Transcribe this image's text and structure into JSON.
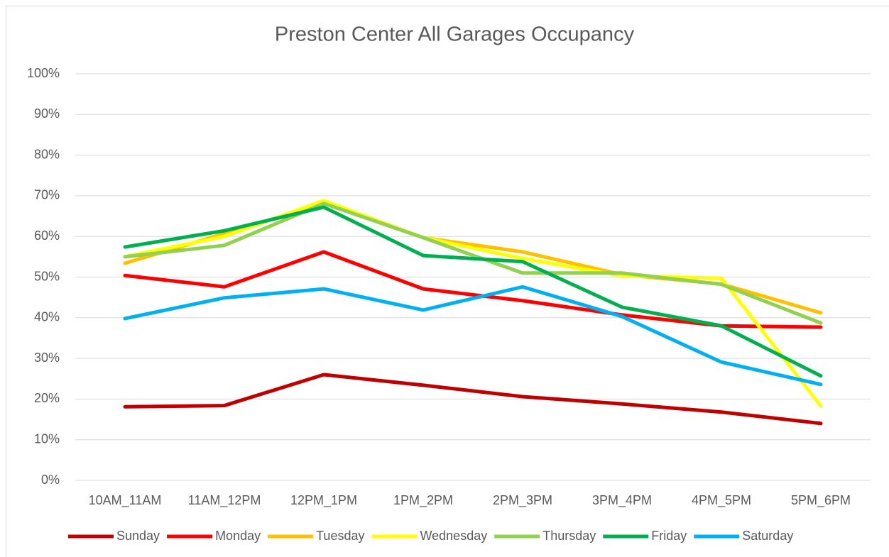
{
  "chart_data": {
    "type": "line",
    "title": "Preston Center All Garages Occupancy",
    "categories": [
      "10AM_11AM",
      "11AM_12PM",
      "12PM_1PM",
      "1PM_2PM",
      "2PM_3PM",
      "3PM_4PM",
      "4PM_5PM",
      "5PM_6PM"
    ],
    "series": [
      {
        "name": "Sunday",
        "color": "#c00000",
        "values": [
          18.1,
          18.4,
          26.0,
          23.4,
          20.6,
          18.8,
          16.8,
          14.0
        ]
      },
      {
        "name": "Monday",
        "color": "#ff0000",
        "values": [
          50.4,
          47.6,
          56.2,
          47.1,
          44.2,
          40.7,
          38.0,
          37.7
        ]
      },
      {
        "name": "Tuesday",
        "color": "#ffc000",
        "values": [
          53.4,
          60.7,
          68.1,
          59.7,
          56.2,
          50.6,
          48.3,
          41.2
        ]
      },
      {
        "name": "Wednesday",
        "color": "#ffff00",
        "values": [
          55.0,
          60.0,
          68.8,
          59.7,
          54.6,
          50.3,
          49.7,
          18.3
        ]
      },
      {
        "name": "Thursday",
        "color": "#92d050",
        "values": [
          55.0,
          57.8,
          68.1,
          59.7,
          51.0,
          51.0,
          48.2,
          38.7
        ]
      },
      {
        "name": "Friday",
        "color": "#00b050",
        "values": [
          57.4,
          61.4,
          67.2,
          55.3,
          53.8,
          42.6,
          38.0,
          25.7
        ]
      },
      {
        "name": "Saturday",
        "color": "#00b0f0",
        "values": [
          39.8,
          44.9,
          47.1,
          41.9,
          47.6,
          40.3,
          29.1,
          23.6
        ]
      }
    ],
    "ylim": [
      0,
      100
    ],
    "yticks": [
      {
        "value": 0,
        "label": "0%"
      },
      {
        "value": 10,
        "label": "10%"
      },
      {
        "value": 20,
        "label": "20%"
      },
      {
        "value": 30,
        "label": "30%"
      },
      {
        "value": 40,
        "label": "40%"
      },
      {
        "value": 50,
        "label": "50%"
      },
      {
        "value": 60,
        "label": "60%"
      },
      {
        "value": 70,
        "label": "70%"
      },
      {
        "value": 80,
        "label": "80%"
      },
      {
        "value": 90,
        "label": "90%"
      },
      {
        "value": 100,
        "label": "100%"
      }
    ],
    "grid": true,
    "legend": "bottom"
  }
}
